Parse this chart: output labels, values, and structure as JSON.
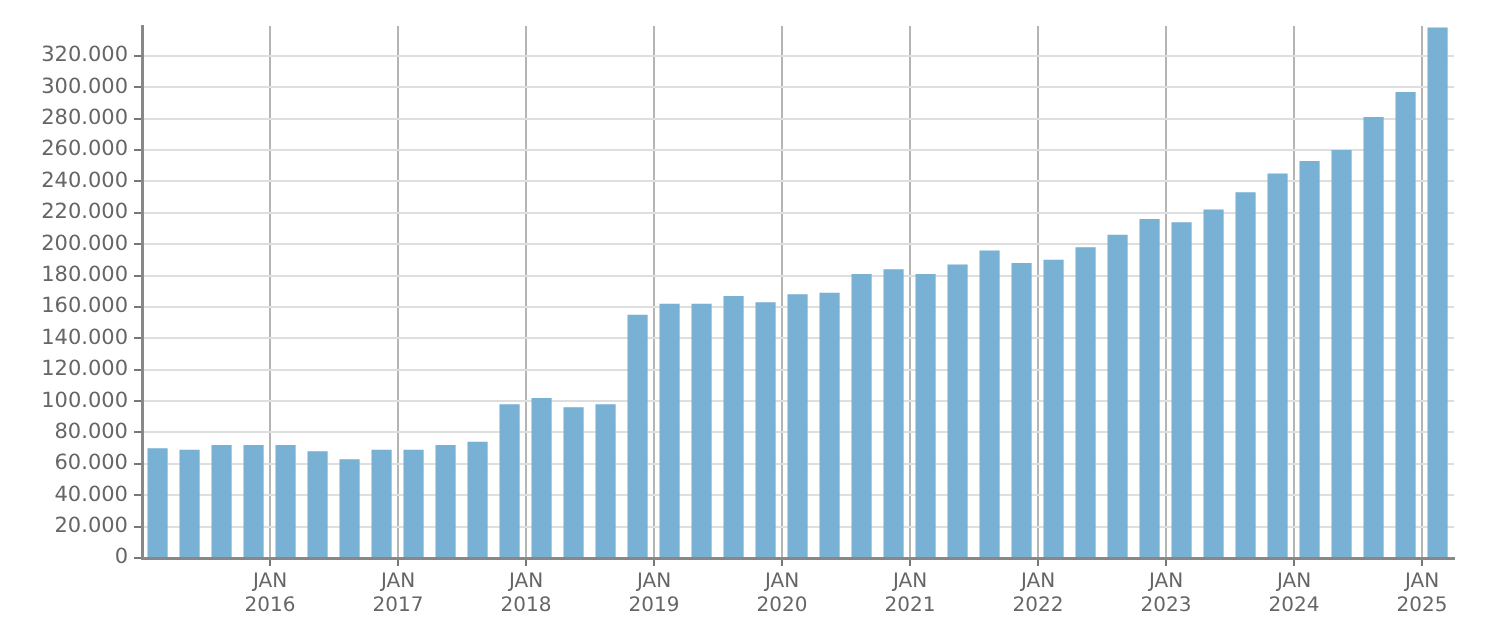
{
  "chart_data": {
    "type": "bar",
    "color": "#78b1d3",
    "x": [
      "2015-02-15",
      "2015-05-15",
      "2015-08-15",
      "2015-11-15",
      "2016-02-15",
      "2016-05-15",
      "2016-08-15",
      "2016-11-15",
      "2017-02-15",
      "2017-05-15",
      "2017-08-15",
      "2017-11-15",
      "2018-02-15",
      "2018-05-15",
      "2018-08-15",
      "2018-11-15",
      "2019-02-15",
      "2019-05-15",
      "2019-08-15",
      "2019-11-15",
      "2020-02-15",
      "2020-05-15",
      "2020-08-15",
      "2020-11-15",
      "2021-02-15",
      "2021-05-15",
      "2021-08-15",
      "2021-11-15",
      "2022-02-15",
      "2022-05-15",
      "2022-08-15",
      "2022-11-15",
      "2023-02-15",
      "2023-05-15",
      "2023-08-15",
      "2023-11-15",
      "2024-02-15",
      "2024-05-15",
      "2024-08-15",
      "2024-11-15",
      "2025-02-15"
    ],
    "values": [
      70000,
      69000,
      72000,
      72000,
      72000,
      68000,
      63000,
      69000,
      69000,
      72000,
      74000,
      98000,
      102000,
      96000,
      98000,
      155000,
      162000,
      162000,
      167000,
      163000,
      168000,
      169000,
      181000,
      184000,
      181000,
      187000,
      196000,
      188000,
      190000,
      198000,
      206000,
      216000,
      214000,
      222000,
      233000,
      245000,
      253000,
      260000,
      281000,
      297000,
      338000
    ],
    "xlim": [
      "2015-01-01",
      "2025-04-01"
    ],
    "xticks": [
      {
        "value": "2016-01-01",
        "label": "JAN 2016"
      },
      {
        "value": "2017-01-01",
        "label": "JAN 2017"
      },
      {
        "value": "2018-01-01",
        "label": "JAN 2018"
      },
      {
        "value": "2019-01-01",
        "label": "JAN 2019"
      },
      {
        "value": "2020-01-01",
        "label": "JAN 2020"
      },
      {
        "value": "2021-01-01",
        "label": "JAN 2021"
      },
      {
        "value": "2022-01-01",
        "label": "JAN 2022"
      },
      {
        "value": "2023-01-01",
        "label": "JAN 2023"
      },
      {
        "value": "2024-01-01",
        "label": "JAN 2024"
      },
      {
        "value": "2025-01-01",
        "label": "JAN 2025"
      }
    ],
    "ylim": [
      0,
      339000
    ],
    "yticks": [
      0,
      {
        "value": 20000,
        "label": "20.000"
      },
      {
        "value": 40000,
        "label": "40.000"
      },
      {
        "value": 60000,
        "label": "60.000"
      },
      {
        "value": 80000,
        "label": "80.000"
      },
      {
        "value": 100000,
        "label": "100.000"
      },
      {
        "value": 120000,
        "label": "120.000"
      },
      {
        "value": 140000,
        "label": "140.000"
      },
      {
        "value": 160000,
        "label": "160.000"
      },
      {
        "value": 180000,
        "label": "180.000"
      },
      {
        "value": 200000,
        "label": "200.000"
      },
      {
        "value": 220000,
        "label": "220.000"
      },
      {
        "value": 240000,
        "label": "240.000"
      },
      {
        "value": 260000,
        "label": "260.000"
      },
      {
        "value": 280000,
        "label": "280.000"
      },
      {
        "value": 300000,
        "label": "300.000"
      },
      {
        "value": 320000,
        "label": "320.000"
      }
    ],
    "grid": true,
    "legend": false
  }
}
